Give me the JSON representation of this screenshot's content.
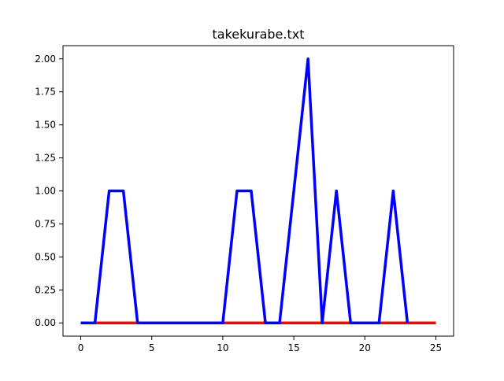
{
  "chart_data": {
    "type": "line",
    "title": "takekurabe.txt",
    "xlabel": "",
    "ylabel": "",
    "xlim": [
      -1.25,
      26.25
    ],
    "ylim": [
      -0.1,
      2.1
    ],
    "xticks": [
      0,
      5,
      10,
      15,
      20,
      25
    ],
    "xtick_labels": [
      "0",
      "5",
      "10",
      "15",
      "20",
      "25"
    ],
    "yticks": [
      0,
      0.25,
      0.5,
      0.75,
      1.0,
      1.25,
      1.5,
      1.75,
      2.0
    ],
    "ytick_labels": [
      "0.00",
      "0.25",
      "0.50",
      "0.75",
      "1.00",
      "1.25",
      "1.50",
      "1.75",
      "2.00"
    ],
    "grid": false,
    "series": [
      {
        "color": "#ff0000",
        "x": [
          0,
          1,
          2,
          3,
          4,
          5,
          6,
          7,
          8,
          9,
          10,
          11,
          12,
          13,
          14,
          15,
          16,
          17,
          18,
          19,
          20,
          21,
          22,
          23,
          24,
          25
        ],
        "values": [
          0,
          0,
          0,
          0,
          0,
          0,
          0,
          0,
          0,
          0,
          0,
          0,
          0,
          0,
          0,
          0,
          0,
          0,
          0,
          0,
          0,
          0,
          0,
          0,
          0,
          0
        ]
      },
      {
        "color": "#0000ff",
        "x": [
          0,
          1,
          2,
          3,
          4,
          5,
          6,
          7,
          8,
          9,
          10,
          11,
          12,
          13,
          14,
          15,
          16,
          17,
          18,
          19,
          20,
          21,
          22,
          23
        ],
        "values": [
          0,
          0,
          1,
          1,
          0,
          0,
          0,
          0,
          0,
          0,
          0,
          1,
          1,
          0,
          0,
          1,
          2,
          0,
          1,
          0,
          0,
          0,
          1,
          0
        ]
      }
    ]
  }
}
